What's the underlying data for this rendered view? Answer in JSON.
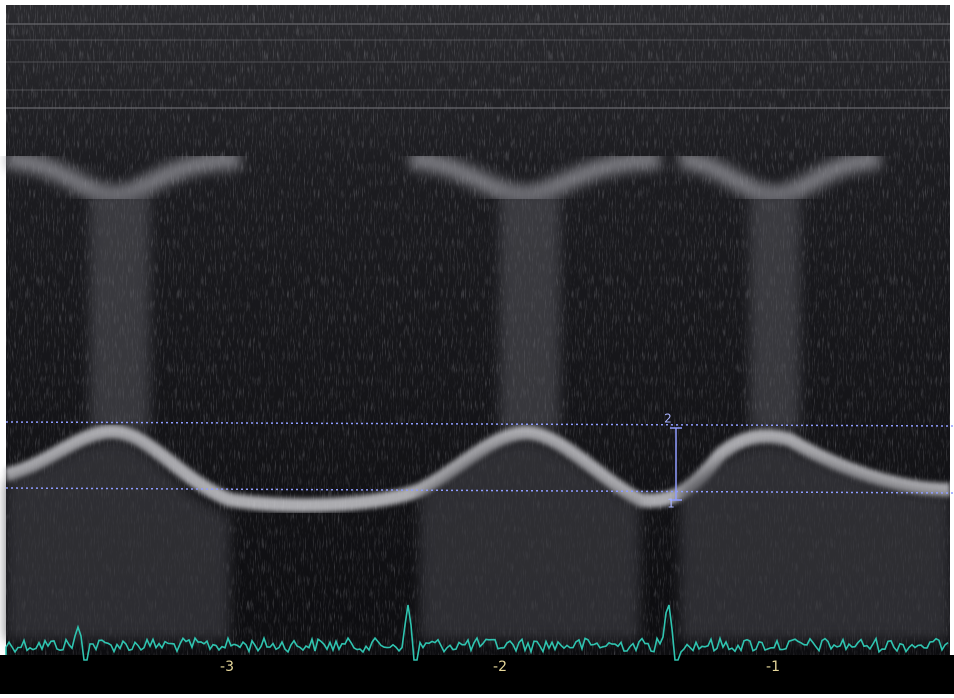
{
  "time_axis": {
    "labels": [
      "-3",
      "-2",
      "-1"
    ]
  },
  "caliper": {
    "labels": [
      "2",
      "1"
    ]
  }
}
